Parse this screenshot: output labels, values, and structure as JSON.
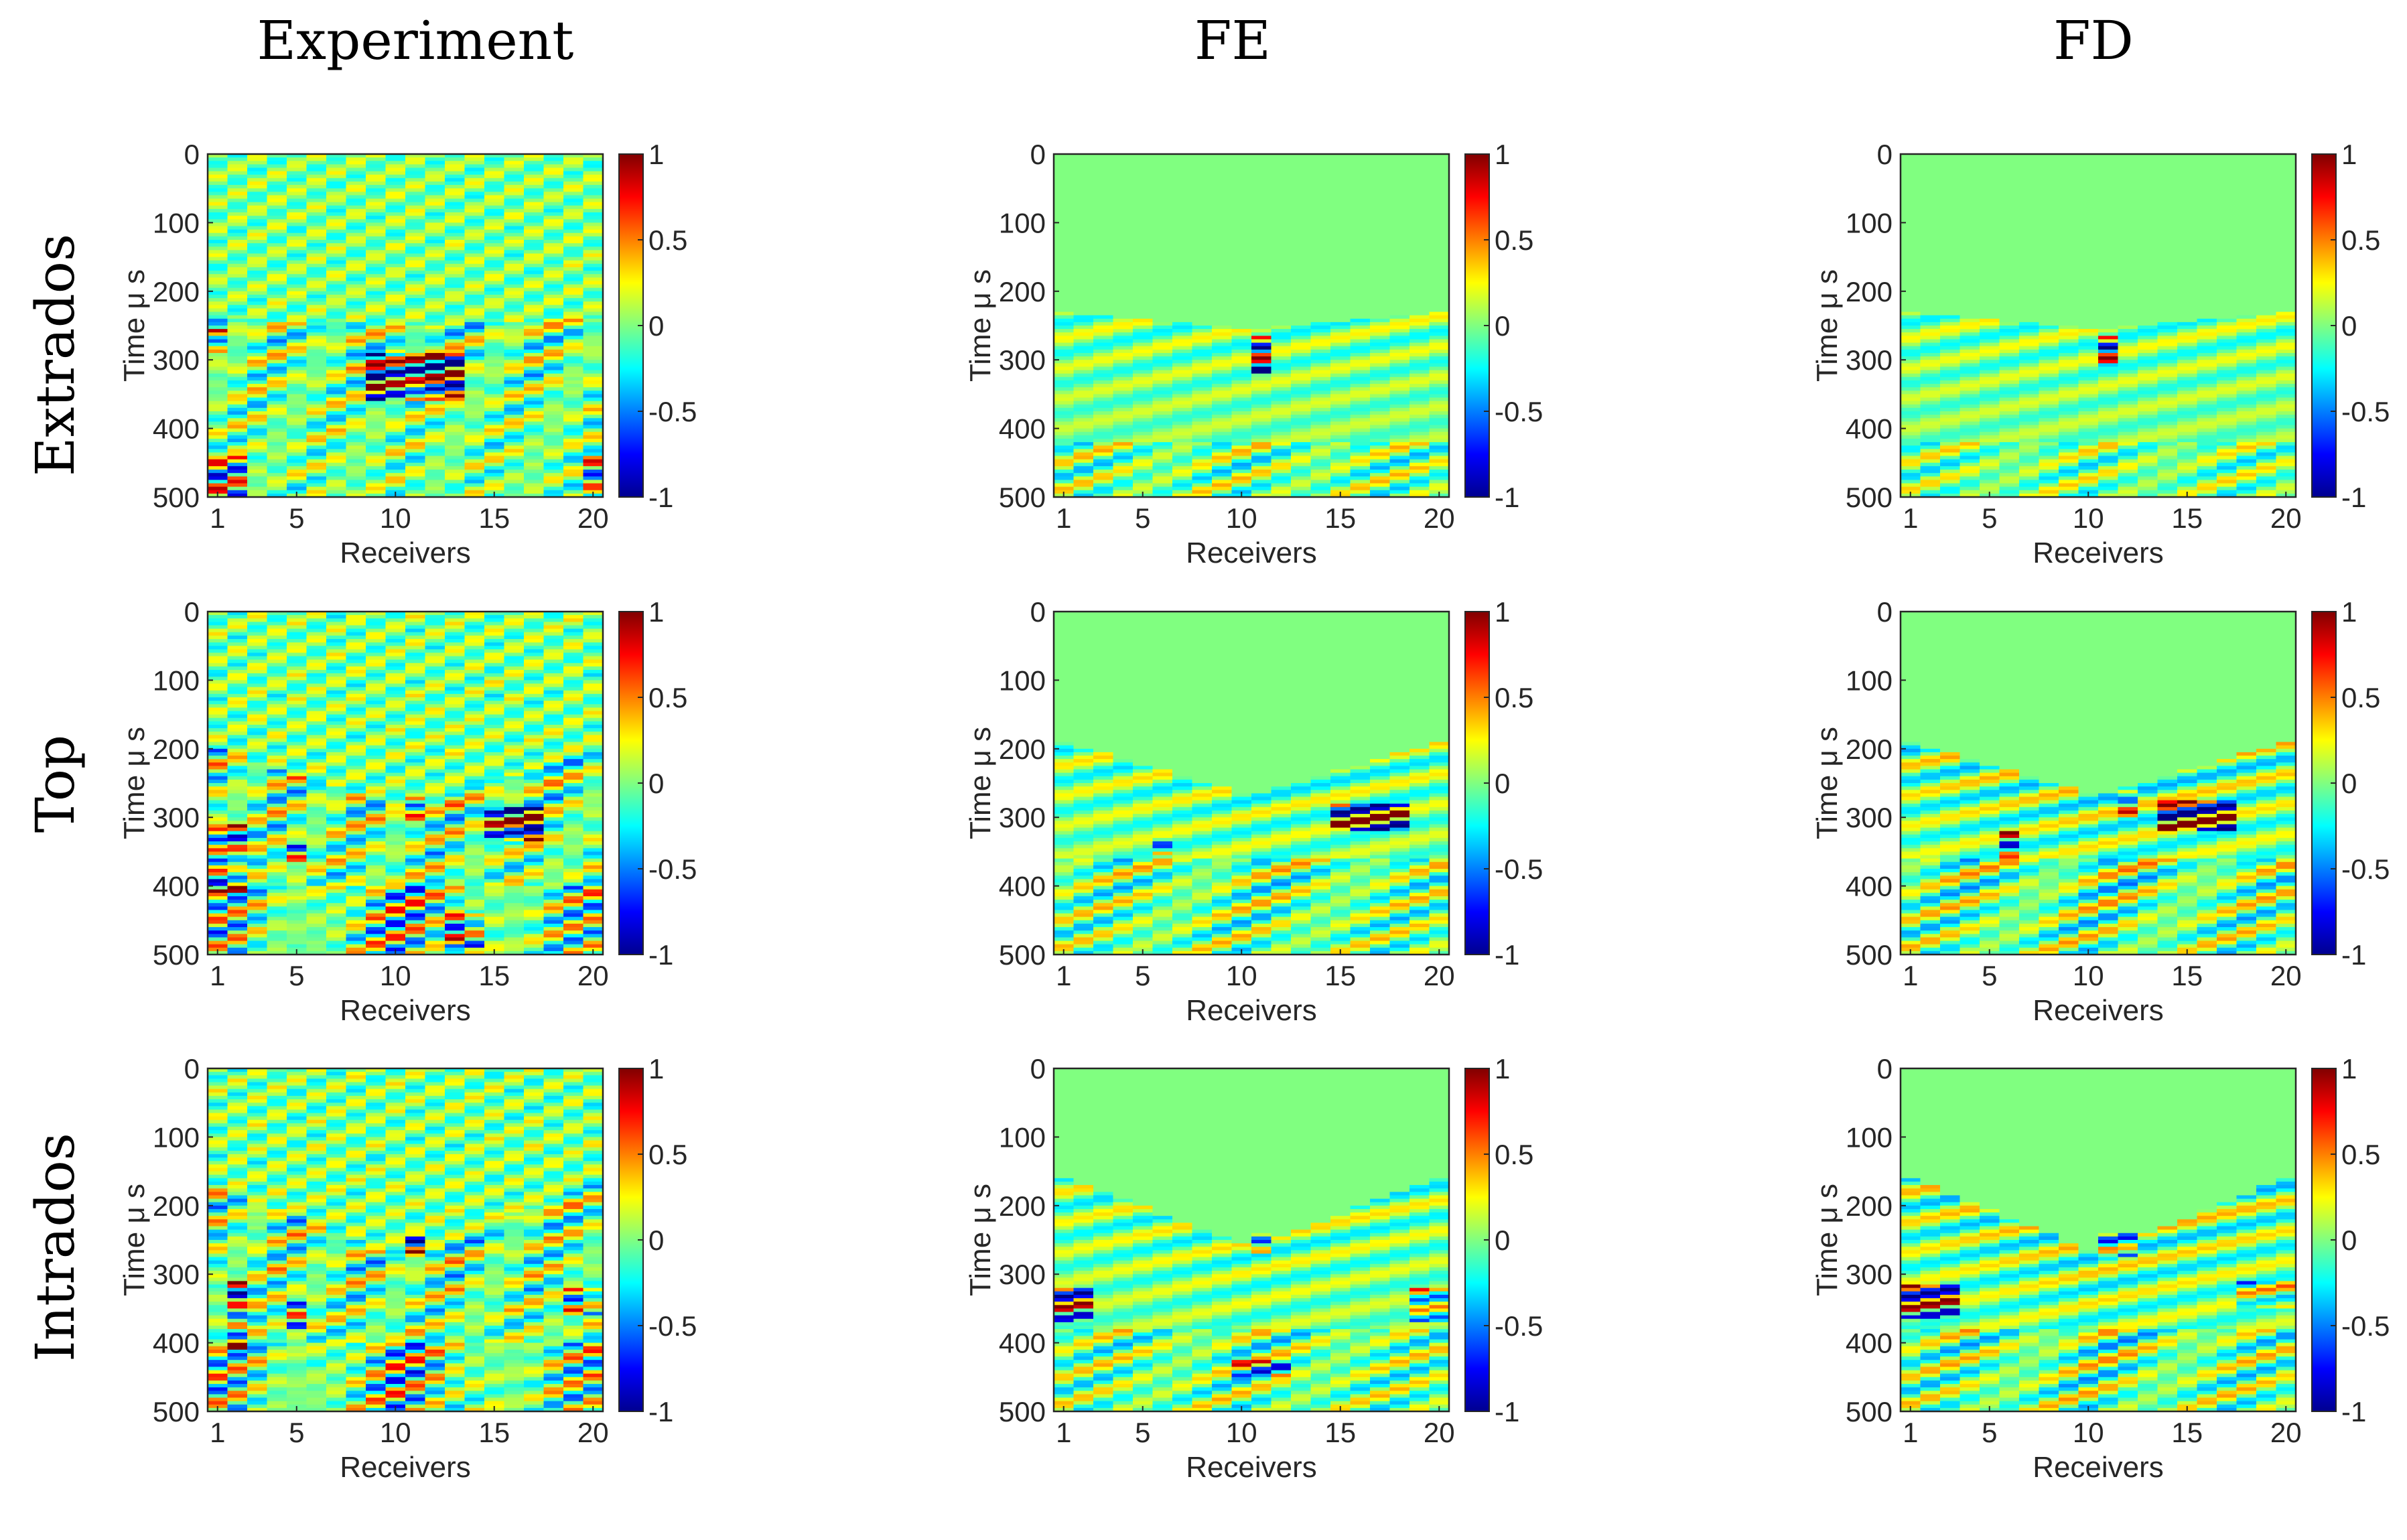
{
  "figure": {
    "column_titles": [
      "Experiment",
      "FE",
      "FD"
    ],
    "row_titles": [
      "Extrados",
      "Top",
      "Intrados"
    ],
    "colormap": "jet",
    "colormap_stops": [
      "#00008f",
      "#0000ff",
      "#00ffff",
      "#80ff80",
      "#ffff00",
      "#ff0000",
      "#800000"
    ],
    "background_value_color": "#80ff80"
  },
  "chart_data": [
    {
      "type": "heatmap",
      "row": "Extrados",
      "column": "Experiment",
      "xlabel": "Receivers",
      "ylabel": "Time μ s",
      "xticks": [
        1,
        5,
        10,
        15,
        20
      ],
      "yticks": [
        0,
        100,
        200,
        300,
        400,
        500
      ],
      "xlim": [
        1,
        20
      ],
      "ylim": [
        0,
        500
      ],
      "clim": [
        -1,
        1
      ],
      "cticks": [
        "1",
        "0.5",
        "0",
        "-0.5",
        "-1"
      ],
      "wavefront": {
        "arrival_edge_us": 240,
        "arrival_center_us": 250,
        "amplitude": 0.35
      },
      "hotspots": [
        {
          "receivers": [
            9,
            13
          ],
          "time_us": [
            290,
            360
          ],
          "amplitude": 1.0
        },
        {
          "receivers": [
            1,
            1
          ],
          "time_us": [
            255,
            295
          ],
          "amplitude": 0.8
        }
      ],
      "late_energy": [
        {
          "receivers": [
            1,
            2
          ],
          "time_us": [
            440,
            500
          ],
          "amplitude": 0.6
        },
        {
          "receivers": [
            20,
            20
          ],
          "time_us": [
            440,
            500
          ],
          "amplitude": 0.6
        }
      ],
      "noise_level": 0.3
    },
    {
      "type": "heatmap",
      "row": "Extrados",
      "column": "FE",
      "xlabel": "Receivers",
      "ylabel": "Time μ s",
      "xticks": [
        1,
        5,
        10,
        15,
        20
      ],
      "yticks": [
        0,
        100,
        200,
        300,
        400,
        500
      ],
      "xlim": [
        1,
        20
      ],
      "ylim": [
        0,
        500
      ],
      "clim": [
        -1,
        1
      ],
      "cticks": [
        "1",
        "0.5",
        "0",
        "-0.5",
        "-1"
      ],
      "wavefront": {
        "arrival_edge_us": 230,
        "arrival_center_us": 255,
        "amplitude": 0.3
      },
      "hotspots": [
        {
          "receivers": [
            11,
            11
          ],
          "time_us": [
            265,
            325
          ],
          "amplitude": 1.0
        }
      ],
      "late_energy": [
        {
          "receivers": [
            1,
            20
          ],
          "time_us": [
            420,
            500
          ],
          "amplitude": 0.3
        }
      ],
      "noise_level": 0.0
    },
    {
      "type": "heatmap",
      "row": "Extrados",
      "column": "FD",
      "xlabel": "Receivers",
      "ylabel": "Time μ s",
      "xticks": [
        1,
        5,
        10,
        15,
        20
      ],
      "yticks": [
        0,
        100,
        200,
        300,
        400,
        500
      ],
      "xlim": [
        1,
        20
      ],
      "ylim": [
        0,
        500
      ],
      "clim": [
        -1,
        1
      ],
      "cticks": [
        "1",
        "0.5",
        "0",
        "-0.5",
        "-1"
      ],
      "wavefront": {
        "arrival_edge_us": 230,
        "arrival_center_us": 255,
        "amplitude": 0.3
      },
      "hotspots": [
        {
          "receivers": [
            11,
            11
          ],
          "time_us": [
            265,
            310
          ],
          "amplitude": 1.0
        }
      ],
      "late_energy": [
        {
          "receivers": [
            1,
            20
          ],
          "time_us": [
            420,
            500
          ],
          "amplitude": 0.25
        }
      ],
      "noise_level": 0.0
    },
    {
      "type": "heatmap",
      "row": "Top",
      "column": "Experiment",
      "xlabel": "Receivers",
      "ylabel": "Time μ s",
      "xticks": [
        1,
        5,
        10,
        15,
        20
      ],
      "yticks": [
        0,
        100,
        200,
        300,
        400,
        500
      ],
      "xlim": [
        1,
        20
      ],
      "ylim": [
        0,
        500
      ],
      "clim": [
        -1,
        1
      ],
      "cticks": [
        "1",
        "0.5",
        "0",
        "-0.5",
        "-1"
      ],
      "wavefront": {
        "arrival_edge_us": 200,
        "arrival_center_us": 290,
        "amplitude": 0.35
      },
      "hotspots": [
        {
          "receivers": [
            15,
            17
          ],
          "time_us": [
            285,
            335
          ],
          "amplitude": 1.0
        },
        {
          "receivers": [
            1,
            2
          ],
          "time_us": [
            310,
            410
          ],
          "amplitude": 0.8
        },
        {
          "receivers": [
            5,
            5
          ],
          "time_us": [
            340,
            370
          ],
          "amplitude": 0.7
        },
        {
          "receivers": [
            11,
            11
          ],
          "time_us": [
            270,
            310
          ],
          "amplitude": 0.6
        },
        {
          "receivers": [
            13,
            14
          ],
          "time_us": [
            440,
            490
          ],
          "amplitude": 0.6
        }
      ],
      "late_energy": [
        {
          "receivers": [
            1,
            20
          ],
          "time_us": [
            400,
            500
          ],
          "amplitude": 0.35
        }
      ],
      "noise_level": 0.35
    },
    {
      "type": "heatmap",
      "row": "Top",
      "column": "FE",
      "xlabel": "Receivers",
      "ylabel": "Time μ s",
      "xticks": [
        1,
        5,
        10,
        15,
        20
      ],
      "yticks": [
        0,
        100,
        200,
        300,
        400,
        500
      ],
      "xlim": [
        1,
        20
      ],
      "ylim": [
        0,
        500
      ],
      "clim": [
        -1,
        1
      ],
      "cticks": [
        "1",
        "0.5",
        "0",
        "-0.5",
        "-1"
      ],
      "wavefront": {
        "arrival_edge_us": 190,
        "arrival_center_us": 270,
        "amplitude": 0.35
      },
      "hotspots": [
        {
          "receivers": [
            15,
            18
          ],
          "time_us": [
            280,
            320
          ],
          "amplitude": 1.0
        },
        {
          "receivers": [
            6,
            6
          ],
          "time_us": [
            330,
            355
          ],
          "amplitude": 0.6
        }
      ],
      "late_energy": [
        {
          "receivers": [
            1,
            20
          ],
          "time_us": [
            360,
            500
          ],
          "amplitude": 0.3
        }
      ],
      "noise_level": 0.0
    },
    {
      "type": "heatmap",
      "row": "Top",
      "column": "FD",
      "xlabel": "Receivers",
      "ylabel": "Time μ s",
      "xticks": [
        1,
        5,
        10,
        15,
        20
      ],
      "yticks": [
        0,
        100,
        200,
        300,
        400,
        500
      ],
      "xlim": [
        1,
        20
      ],
      "ylim": [
        0,
        500
      ],
      "clim": [
        -1,
        1
      ],
      "cticks": [
        "1",
        "0.5",
        "0",
        "-0.5",
        "-1"
      ],
      "wavefront": {
        "arrival_edge_us": 190,
        "arrival_center_us": 270,
        "amplitude": 0.45
      },
      "hotspots": [
        {
          "receivers": [
            14,
            17
          ],
          "time_us": [
            275,
            320
          ],
          "amplitude": 1.0
        },
        {
          "receivers": [
            6,
            6
          ],
          "time_us": [
            320,
            360
          ],
          "amplitude": 0.8
        },
        {
          "receivers": [
            12,
            12
          ],
          "time_us": [
            260,
            300
          ],
          "amplitude": 0.6
        }
      ],
      "late_energy": [
        {
          "receivers": [
            1,
            20
          ],
          "time_us": [
            360,
            500
          ],
          "amplitude": 0.3
        }
      ],
      "noise_level": 0.0
    },
    {
      "type": "heatmap",
      "row": "Intrados",
      "column": "Experiment",
      "xlabel": "Receivers",
      "ylabel": "Time μ s",
      "xticks": [
        1,
        5,
        10,
        15,
        20
      ],
      "yticks": [
        0,
        100,
        200,
        300,
        400,
        500
      ],
      "xlim": [
        1,
        20
      ],
      "ylim": [
        0,
        500
      ],
      "clim": [
        -1,
        1
      ],
      "cticks": [
        "1",
        "0.5",
        "0",
        "-0.5",
        "-1"
      ],
      "wavefront": {
        "arrival_edge_us": 170,
        "arrival_center_us": 280,
        "amplitude": 0.35
      },
      "hotspots": [
        {
          "receivers": [
            2,
            2
          ],
          "time_us": [
            310,
            410
          ],
          "amplitude": 0.95
        },
        {
          "receivers": [
            5,
            5
          ],
          "time_us": [
            340,
            380
          ],
          "amplitude": 0.7
        },
        {
          "receivers": [
            11,
            11
          ],
          "time_us": [
            240,
            270
          ],
          "amplitude": 0.8
        },
        {
          "receivers": [
            19,
            20
          ],
          "time_us": [
            320,
            360
          ],
          "amplitude": 0.7
        }
      ],
      "late_energy": [
        {
          "receivers": [
            1,
            20
          ],
          "time_us": [
            400,
            500
          ],
          "amplitude": 0.35
        }
      ],
      "noise_level": 0.35
    },
    {
      "type": "heatmap",
      "row": "Intrados",
      "column": "FE",
      "xlabel": "Receivers",
      "ylabel": "Time μ s",
      "xticks": [
        1,
        5,
        10,
        15,
        20
      ],
      "yticks": [
        0,
        100,
        200,
        300,
        400,
        500
      ],
      "xlim": [
        1,
        20
      ],
      "ylim": [
        0,
        500
      ],
      "clim": [
        -1,
        1
      ],
      "cticks": [
        "1",
        "0.5",
        "0",
        "-0.5",
        "-1"
      ],
      "wavefront": {
        "arrival_edge_us": 160,
        "arrival_center_us": 260,
        "amplitude": 0.35
      },
      "hotspots": [
        {
          "receivers": [
            1,
            2
          ],
          "time_us": [
            320,
            370
          ],
          "amplitude": 1.0
        },
        {
          "receivers": [
            11,
            11
          ],
          "time_us": [
            240,
            270
          ],
          "amplitude": 0.7
        },
        {
          "receivers": [
            19,
            20
          ],
          "time_us": [
            320,
            370
          ],
          "amplitude": 0.7
        },
        {
          "receivers": [
            10,
            12
          ],
          "time_us": [
            425,
            450
          ],
          "amplitude": 0.5
        }
      ],
      "late_energy": [
        {
          "receivers": [
            1,
            20
          ],
          "time_us": [
            380,
            500
          ],
          "amplitude": 0.3
        }
      ],
      "noise_level": 0.0
    },
    {
      "type": "heatmap",
      "row": "Intrados",
      "column": "FD",
      "xlabel": "Receivers",
      "ylabel": "Time μ s",
      "xticks": [
        1,
        5,
        10,
        15,
        20
      ],
      "yticks": [
        0,
        100,
        200,
        300,
        400,
        500
      ],
      "xlim": [
        1,
        20
      ],
      "ylim": [
        0,
        500
      ],
      "clim": [
        -1,
        1
      ],
      "cticks": [
        "1",
        "0.5",
        "0",
        "-0.5",
        "-1"
      ],
      "wavefront": {
        "arrival_edge_us": 160,
        "arrival_center_us": 270,
        "amplitude": 0.45
      },
      "hotspots": [
        {
          "receivers": [
            1,
            3
          ],
          "time_us": [
            315,
            365
          ],
          "amplitude": 1.0
        },
        {
          "receivers": [
            11,
            12
          ],
          "time_us": [
            240,
            275
          ],
          "amplitude": 0.8
        },
        {
          "receivers": [
            18,
            20
          ],
          "time_us": [
            310,
            350
          ],
          "amplitude": 0.5
        }
      ],
      "late_energy": [
        {
          "receivers": [
            1,
            20
          ],
          "time_us": [
            380,
            500
          ],
          "amplitude": 0.3
        }
      ],
      "noise_level": 0.0
    }
  ]
}
